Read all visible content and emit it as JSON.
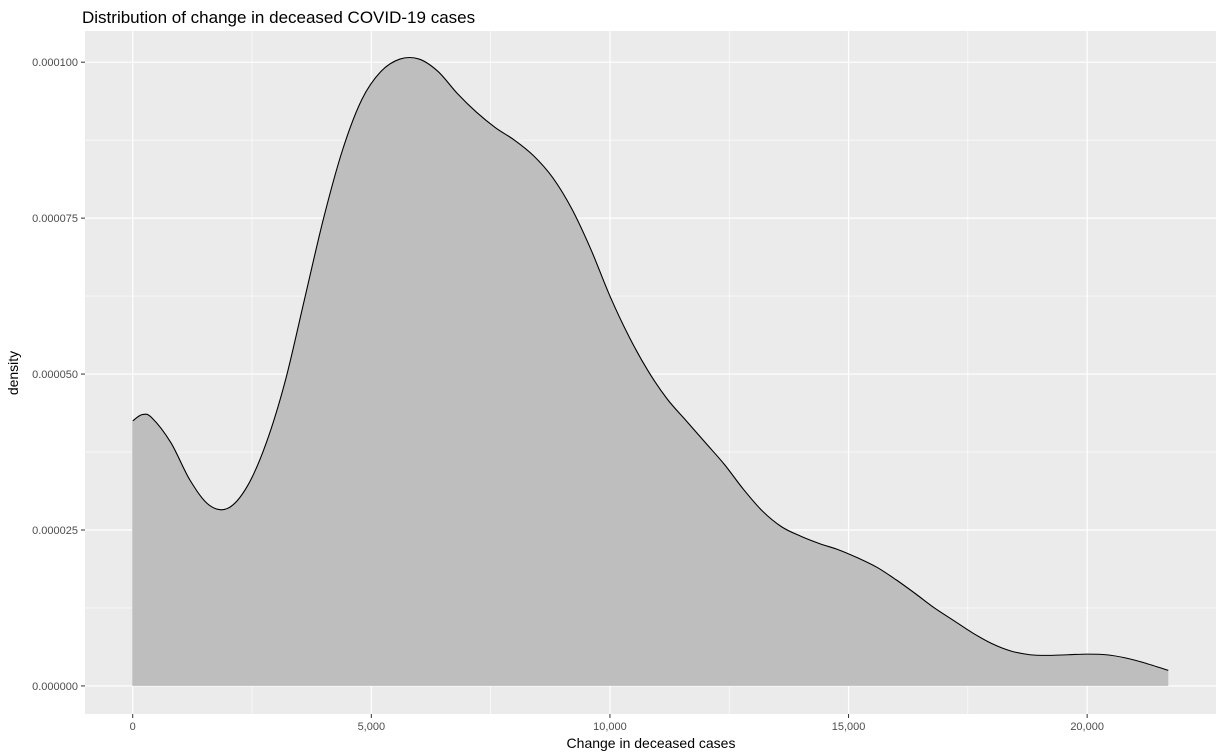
{
  "chart_data": {
    "type": "area",
    "title": "Distribution of change in deceased COVID-19 cases",
    "xlabel": "Change in deceased cases",
    "ylabel": "density",
    "xlim": [
      -1000,
      22700
    ],
    "ylim": [
      -4.5e-06,
      0.000105
    ],
    "x_ticks": [
      0,
      5000,
      10000,
      15000,
      20000
    ],
    "x_tick_labels": [
      "0",
      "5,000",
      "10,000",
      "15,000",
      "20,000"
    ],
    "y_ticks": [
      0,
      2.5e-05,
      5e-05,
      7.5e-05,
      0.0001
    ],
    "y_tick_labels": [
      "0.000000",
      "0.000025",
      "0.000050",
      "0.000075",
      "0.000100"
    ],
    "grid": true,
    "legend": "none",
    "colors": {
      "panel": "#ebebeb",
      "grid": "#ffffff",
      "fill": "#bebebe",
      "line": "#000000",
      "tick_text": "#4d4d4d"
    },
    "series": [
      {
        "x": [
          0,
          200,
          400,
          800,
          1200,
          1600,
          2000,
          2400,
          2800,
          3200,
          3600,
          4000,
          4400,
          4800,
          5200,
          5600,
          6000,
          6400,
          6800,
          7200,
          7600,
          8000,
          8400,
          8800,
          9200,
          9600,
          10000,
          10400,
          10800,
          11200,
          11600,
          12000,
          12400,
          12800,
          13200,
          13600,
          14000,
          14400,
          14800,
          15200,
          15600,
          16000,
          16400,
          16800,
          17200,
          17600,
          18000,
          18400,
          18800,
          19200,
          19600,
          20000,
          20400,
          20800,
          21200,
          21700
        ],
        "y": [
          4.25e-05,
          4.35e-05,
          4.3e-05,
          3.9e-05,
          3.3e-05,
          2.9e-05,
          2.85e-05,
          3.2e-05,
          3.9e-05,
          4.9e-05,
          6.2e-05,
          7.5e-05,
          8.6e-05,
          9.4e-05,
          9.85e-05,
          0.0001005,
          0.0001005,
          9.85e-05,
          9.5e-05,
          9.2e-05,
          8.95e-05,
          8.75e-05,
          8.5e-05,
          8.15e-05,
          7.65e-05,
          7e-05,
          6.25e-05,
          5.6e-05,
          5.05e-05,
          4.6e-05,
          4.25e-05,
          3.9e-05,
          3.55e-05,
          3.15e-05,
          2.8e-05,
          2.55e-05,
          2.4e-05,
          2.28e-05,
          2.18e-05,
          2.05e-05,
          1.9e-05,
          1.7e-05,
          1.48e-05,
          1.25e-05,
          1.05e-05,
          8.5e-06,
          6.8e-06,
          5.6e-06,
          5e-06,
          4.9e-06,
          5e-06,
          5.1e-06,
          5e-06,
          4.5e-06,
          3.7e-06,
          2.5e-06
        ]
      }
    ]
  }
}
